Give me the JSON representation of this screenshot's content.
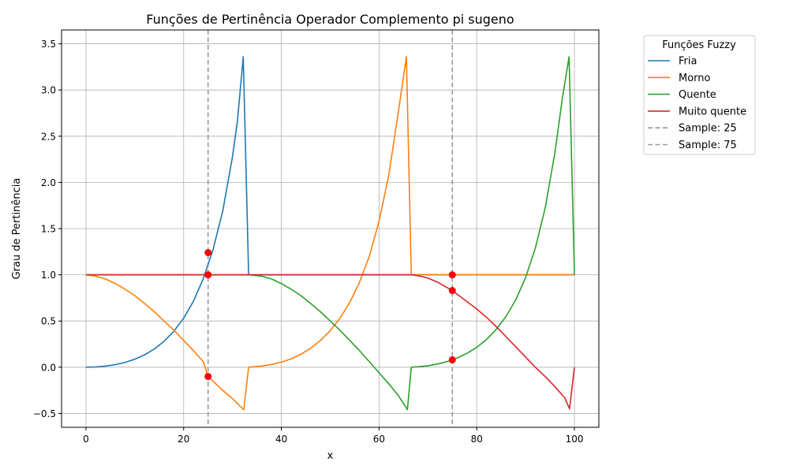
{
  "chart_data": {
    "type": "line",
    "title": "Funções de Pertinência Operador Complemento pi sugeno",
    "xlabel": "x",
    "ylabel": "Grau de Pertinência",
    "xlim": [
      -5,
      105
    ],
    "ylim": [
      -0.65,
      3.65
    ],
    "xticks": [
      0,
      20,
      40,
      60,
      80,
      100
    ],
    "xtick_labels": [
      "0",
      "20",
      "40",
      "60",
      "80",
      "100"
    ],
    "yticks": [
      -0.5,
      0.0,
      0.5,
      1.0,
      1.5,
      2.0,
      2.5,
      3.0,
      3.5
    ],
    "ytick_labels": [
      "−0.5",
      "0.0",
      "0.5",
      "1.0",
      "1.5",
      "2.0",
      "2.5",
      "3.0",
      "3.5"
    ],
    "grid": true,
    "legend": {
      "title": "Funções Fuzzy",
      "placement": "outside-top-right"
    },
    "series": [
      {
        "name": "Fria",
        "color": "#1f77b4",
        "points": [
          [
            0,
            0
          ],
          [
            2,
            0.003
          ],
          [
            4,
            0.012
          ],
          [
            6,
            0.028
          ],
          [
            8,
            0.052
          ],
          [
            10,
            0.087
          ],
          [
            12,
            0.134
          ],
          [
            14,
            0.197
          ],
          [
            16,
            0.281
          ],
          [
            18,
            0.39
          ],
          [
            20,
            0.531
          ],
          [
            22,
            0.714
          ],
          [
            24,
            0.955
          ],
          [
            26,
            1.27
          ],
          [
            28,
            1.69
          ],
          [
            30,
            2.28
          ],
          [
            31,
            2.66
          ],
          [
            32.2,
            3.36
          ],
          [
            33.3,
            1
          ],
          [
            36,
            1
          ],
          [
            40,
            1
          ],
          [
            50,
            1
          ],
          [
            60,
            1
          ],
          [
            70,
            1
          ],
          [
            80,
            1
          ],
          [
            90,
            1
          ],
          [
            100,
            1
          ]
        ]
      },
      {
        "name": "Morno",
        "color": "#ff7f0e",
        "points": [
          [
            0,
            1
          ],
          [
            2,
            0.985
          ],
          [
            4,
            0.955
          ],
          [
            6,
            0.905
          ],
          [
            8,
            0.845
          ],
          [
            10,
            0.775
          ],
          [
            12,
            0.69
          ],
          [
            14,
            0.6
          ],
          [
            16,
            0.5
          ],
          [
            18,
            0.4
          ],
          [
            20,
            0.29
          ],
          [
            22,
            0.18
          ],
          [
            24,
            0.06
          ],
          [
            25,
            -0.1
          ],
          [
            26,
            -0.15
          ],
          [
            28,
            -0.25
          ],
          [
            30,
            -0.34
          ],
          [
            32.3,
            -0.46
          ],
          [
            33.3,
            0
          ],
          [
            36,
            0.013
          ],
          [
            38,
            0.03
          ],
          [
            40,
            0.055
          ],
          [
            42,
            0.09
          ],
          [
            44,
            0.14
          ],
          [
            46,
            0.205
          ],
          [
            48,
            0.29
          ],
          [
            50,
            0.395
          ],
          [
            52,
            0.53
          ],
          [
            54,
            0.7
          ],
          [
            56,
            0.92
          ],
          [
            58,
            1.2
          ],
          [
            60,
            1.58
          ],
          [
            62,
            2.08
          ],
          [
            64,
            2.78
          ],
          [
            65.6,
            3.36
          ],
          [
            66.6,
            1
          ],
          [
            70,
            1
          ],
          [
            80,
            1
          ],
          [
            90,
            1
          ],
          [
            100,
            1
          ]
        ]
      },
      {
        "name": "Quente",
        "color": "#2ca02c",
        "points": [
          [
            0,
            1
          ],
          [
            10,
            1
          ],
          [
            20,
            1
          ],
          [
            30,
            1
          ],
          [
            33.3,
            1
          ],
          [
            36,
            0.985
          ],
          [
            38,
            0.955
          ],
          [
            40,
            0.905
          ],
          [
            42,
            0.845
          ],
          [
            44,
            0.775
          ],
          [
            46,
            0.69
          ],
          [
            48,
            0.6
          ],
          [
            50,
            0.5
          ],
          [
            52,
            0.4
          ],
          [
            54,
            0.29
          ],
          [
            56,
            0.18
          ],
          [
            58,
            0.06
          ],
          [
            60,
            -0.06
          ],
          [
            62,
            -0.18
          ],
          [
            64,
            -0.31
          ],
          [
            65.8,
            -0.46
          ],
          [
            66.6,
            0
          ],
          [
            68,
            0.005
          ],
          [
            70,
            0.015
          ],
          [
            72,
            0.035
          ],
          [
            74,
            0.062
          ],
          [
            75,
            0.08
          ],
          [
            76,
            0.1
          ],
          [
            78,
            0.15
          ],
          [
            80,
            0.215
          ],
          [
            82,
            0.3
          ],
          [
            84,
            0.41
          ],
          [
            86,
            0.55
          ],
          [
            88,
            0.73
          ],
          [
            90,
            0.97
          ],
          [
            92,
            1.29
          ],
          [
            94,
            1.72
          ],
          [
            96,
            2.32
          ],
          [
            97.5,
            2.9
          ],
          [
            98.9,
            3.36
          ],
          [
            100,
            1
          ]
        ]
      },
      {
        "name": "Muito quente",
        "color": "#d62728",
        "points": [
          [
            0,
            1
          ],
          [
            10,
            1
          ],
          [
            20,
            1
          ],
          [
            30,
            1
          ],
          [
            40,
            1
          ],
          [
            50,
            1
          ],
          [
            60,
            1
          ],
          [
            66.6,
            1
          ],
          [
            68,
            0.99
          ],
          [
            70,
            0.965
          ],
          [
            72,
            0.92
          ],
          [
            74,
            0.86
          ],
          [
            75,
            0.83
          ],
          [
            76,
            0.79
          ],
          [
            78,
            0.71
          ],
          [
            80,
            0.63
          ],
          [
            82,
            0.54
          ],
          [
            84,
            0.44
          ],
          [
            86,
            0.33
          ],
          [
            88,
            0.22
          ],
          [
            90,
            0.11
          ],
          [
            92,
            0.0
          ],
          [
            94,
            -0.1
          ],
          [
            96,
            -0.21
          ],
          [
            98,
            -0.33
          ],
          [
            99,
            -0.45
          ],
          [
            100,
            0
          ]
        ]
      }
    ],
    "samples": [
      {
        "name": "Sample: 25",
        "x": 25,
        "color": "#999999",
        "points": [
          1.24,
          1.0,
          -0.1
        ]
      },
      {
        "name": "Sample: 75",
        "x": 75,
        "color": "#999999",
        "points": [
          1.0,
          0.83,
          0.08
        ]
      }
    ],
    "marker_color": "#ff0000"
  }
}
